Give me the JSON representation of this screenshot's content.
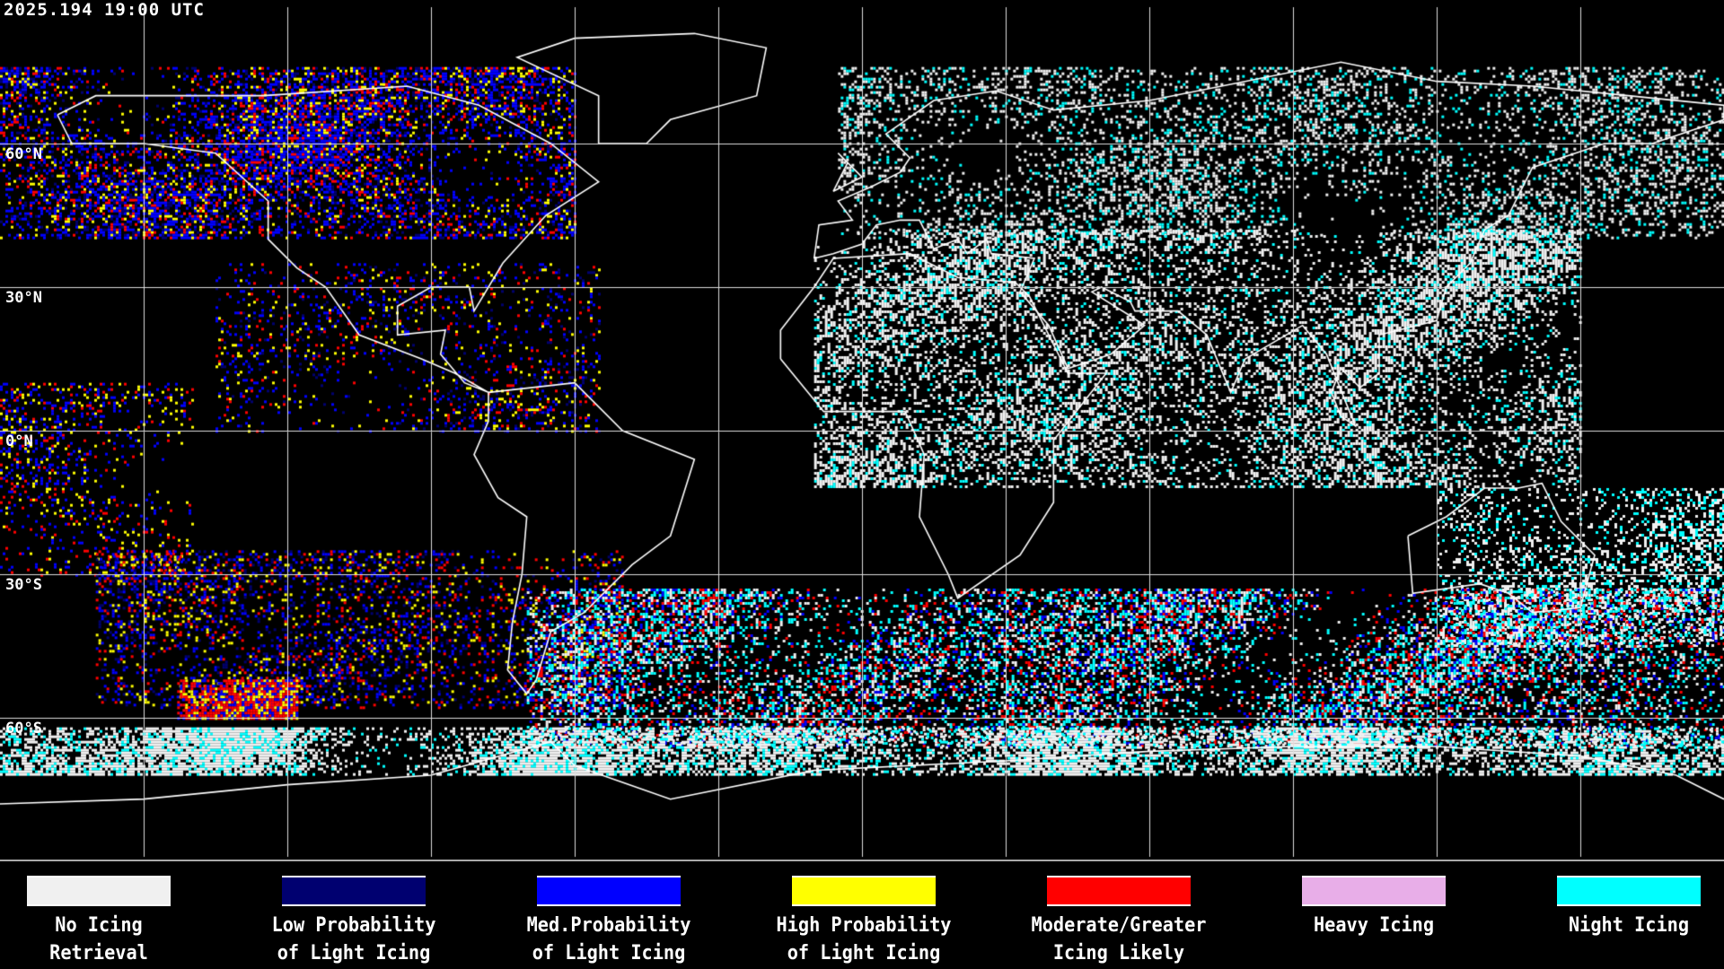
{
  "timestamp": "2025.194 19:00 UTC",
  "map": {
    "projection": "equirectangular",
    "gridlines": true,
    "lat_labels": [
      "60°N",
      "30°N",
      "0°N",
      "30°S",
      "60°S"
    ]
  },
  "legend": {
    "items": [
      {
        "line1": "No Icing",
        "line2": "Retrieval",
        "color": "#f0f0f0"
      },
      {
        "line1": "Low Probability",
        "line2": "of Light Icing",
        "color": "#000070"
      },
      {
        "line1": "Med.Probability",
        "line2": "of Light Icing",
        "color": "#0000ff"
      },
      {
        "line1": "High Probability",
        "line2": "of Light Icing",
        "color": "#ffff00"
      },
      {
        "line1": "Moderate/Greater",
        "line2": "Icing Likely",
        "color": "#ff0000"
      },
      {
        "line1": "Heavy Icing",
        "line2": "",
        "color": "#e8aee8"
      },
      {
        "line1": "Night Icing",
        "line2": "",
        "color": "#00ffff"
      }
    ]
  }
}
